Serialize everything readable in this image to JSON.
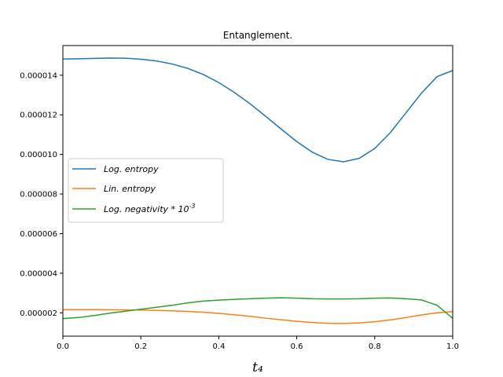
{
  "chart_data": {
    "type": "line",
    "title": "Entanglement.",
    "xlabel": "t₄",
    "ylabel": "",
    "xlim": [
      0.0,
      1.0
    ],
    "ylim": [
      8.2e-07,
      1.55e-05
    ],
    "xticks": [
      0.0,
      0.2,
      0.4,
      0.6,
      0.8,
      1.0
    ],
    "xtick_labels": [
      "0.0",
      "0.2",
      "0.4",
      "0.6",
      "0.8",
      "1.0"
    ],
    "yticks": [
      2e-06,
      4e-06,
      6e-06,
      8e-06,
      1e-05,
      1.2e-05,
      1.4e-05
    ],
    "ytick_labels": [
      "0.000002",
      "0.000004",
      "0.000006",
      "0.000008",
      "0.000010",
      "0.000012",
      "0.000014"
    ],
    "grid": false,
    "legend_position": "center-left",
    "x": [
      0.0,
      0.04,
      0.08,
      0.12,
      0.16,
      0.2,
      0.24,
      0.28,
      0.32,
      0.36,
      0.4,
      0.44,
      0.48,
      0.52,
      0.56,
      0.6,
      0.64,
      0.68,
      0.72,
      0.76,
      0.8,
      0.84,
      0.88,
      0.92,
      0.96,
      1.0
    ],
    "series": [
      {
        "name": "Log. entropy",
        "color": "#1f77b4",
        "values": [
          1.482e-05,
          1.483e-05,
          1.485e-05,
          1.487e-05,
          1.486e-05,
          1.481e-05,
          1.472e-05,
          1.457e-05,
          1.435e-05,
          1.404e-05,
          1.363e-05,
          1.313e-05,
          1.256e-05,
          1.193e-05,
          1.128e-05,
          1.065e-05,
          1.011e-05,
          9.75e-06,
          9.63e-06,
          9.8e-06,
          1.03e-05,
          1.11e-05,
          1.21e-05,
          1.31e-05,
          1.393e-05,
          1.424e-05
        ]
      },
      {
        "name": "Lin. entropy",
        "color": "#ff7f0e",
        "values": [
          2.16e-06,
          2.16e-06,
          2.16e-06,
          2.155e-06,
          2.15e-06,
          2.14e-06,
          2.12e-06,
          2.1e-06,
          2.07e-06,
          2.03e-06,
          1.97e-06,
          1.9e-06,
          1.82e-06,
          1.73e-06,
          1.65e-06,
          1.57e-06,
          1.51e-06,
          1.47e-06,
          1.46e-06,
          1.49e-06,
          1.55e-06,
          1.64e-06,
          1.76e-06,
          1.89e-06,
          2e-06,
          2.06e-06
        ]
      },
      {
        "name": "Log. negativity * 10^-3",
        "color": "#2ca02c",
        "values": [
          1.71e-06,
          1.76e-06,
          1.86e-06,
          1.98e-06,
          2.08e-06,
          2.18e-06,
          2.28e-06,
          2.38e-06,
          2.5e-06,
          2.59e-06,
          2.64e-06,
          2.68e-06,
          2.71e-06,
          2.74e-06,
          2.76e-06,
          2.74e-06,
          2.71e-06,
          2.7e-06,
          2.7e-06,
          2.71e-06,
          2.74e-06,
          2.75e-06,
          2.71e-06,
          2.65e-06,
          2.38e-06,
          1.72e-06
        ]
      }
    ],
    "legend": [
      {
        "label": "Log. entropy",
        "color": "#1f77b4"
      },
      {
        "label": "Lin. entropy",
        "color": "#ff7f0e"
      },
      {
        "label": "Log. negativity * 10^-3",
        "color": "#2ca02c"
      }
    ]
  }
}
